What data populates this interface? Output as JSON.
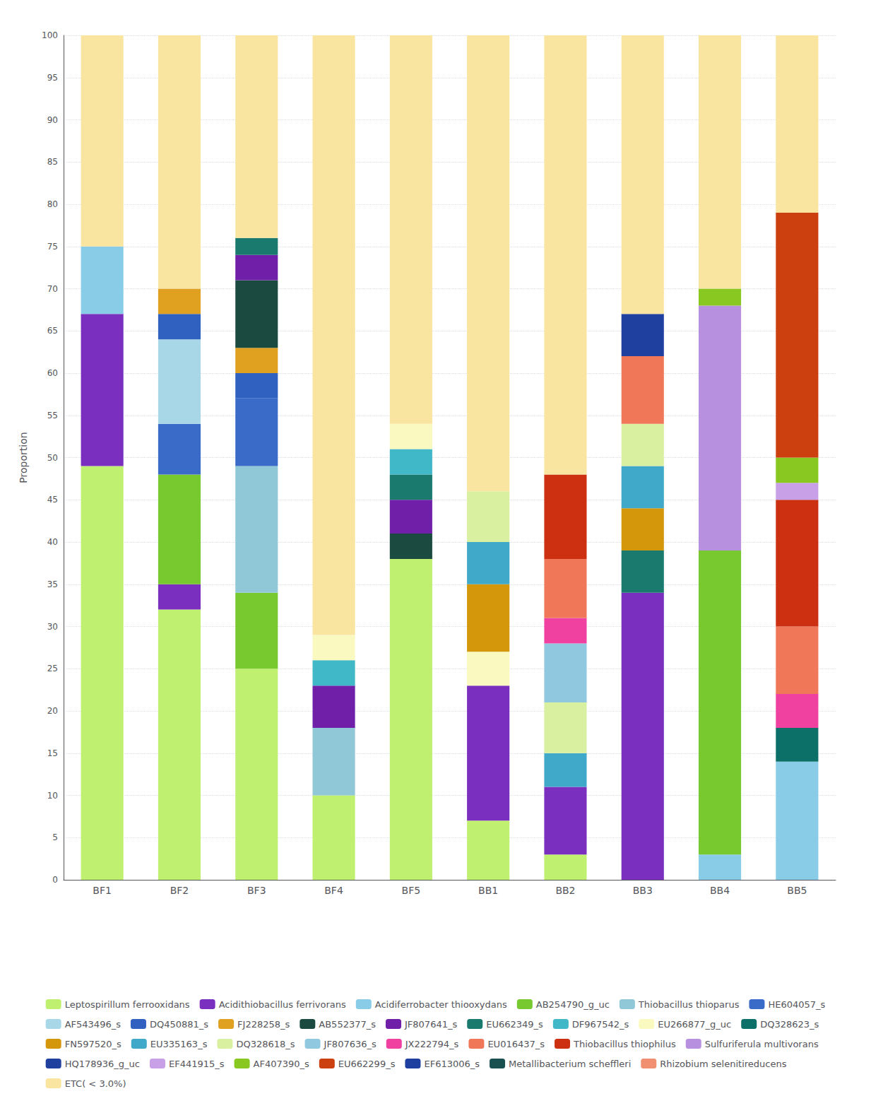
{
  "chart_data": {
    "type": "bar",
    "stacked": true,
    "ylabel": "Proportion",
    "categories": [
      "BF1",
      "BF2",
      "BF3",
      "BF4",
      "BF5",
      "BB1",
      "BB2",
      "BB3",
      "BB4",
      "BB5"
    ],
    "ylim": [
      0,
      100
    ],
    "yticks": [
      0,
      5,
      10,
      15,
      20,
      25,
      30,
      35,
      40,
      45,
      50,
      55,
      60,
      65,
      70,
      75,
      80,
      85,
      90,
      95,
      100
    ],
    "grid": true,
    "legend": "bottom",
    "series": [
      {
        "name": "Leptospirillum ferrooxidans",
        "color": "#C0F070",
        "values": [
          49.0,
          32.0,
          25.0,
          10.0,
          38.0,
          7.0,
          3.0,
          0.0,
          0.0,
          0.0
        ]
      },
      {
        "name": "Acidithiobacillus ferrivorans",
        "color": "#7B2FBF",
        "values": [
          18.0,
          3.0,
          0.0,
          0.0,
          0.0,
          16.0,
          8.0,
          34.0,
          0.0,
          0.0
        ]
      },
      {
        "name": "Acidiferrobacter thiooxydans",
        "color": "#88CCE8",
        "values": [
          8.0,
          0.0,
          0.0,
          0.0,
          0.0,
          0.0,
          0.0,
          0.0,
          3.0,
          14.0
        ]
      },
      {
        "name": "AB254790_g_uc",
        "color": "#78C830",
        "values": [
          0.0,
          13.0,
          9.0,
          0.0,
          0.0,
          0.0,
          0.0,
          0.0,
          36.0,
          0.0
        ]
      },
      {
        "name": "Thiobacillus thioparus",
        "color": "#90C8D8",
        "values": [
          0.0,
          0.0,
          15.0,
          8.0,
          0.0,
          0.0,
          0.0,
          0.0,
          0.0,
          0.0
        ]
      },
      {
        "name": "HE604057_s",
        "color": "#3B6BC8",
        "values": [
          0.0,
          6.0,
          8.0,
          0.0,
          0.0,
          0.0,
          0.0,
          0.0,
          0.0,
          0.0
        ]
      },
      {
        "name": "AF543496_s",
        "color": "#A8D8E8",
        "values": [
          0.0,
          10.0,
          0.0,
          0.0,
          0.0,
          0.0,
          0.0,
          0.0,
          0.0,
          0.0
        ]
      },
      {
        "name": "DQ450881_s",
        "color": "#3060C0",
        "values": [
          0.0,
          3.0,
          3.0,
          0.0,
          0.0,
          0.0,
          0.0,
          0.0,
          0.0,
          0.0
        ]
      },
      {
        "name": "FJ228258_s",
        "color": "#E0A020",
        "values": [
          0.0,
          3.0,
          3.0,
          0.0,
          0.0,
          0.0,
          0.0,
          0.0,
          0.0,
          0.0
        ]
      },
      {
        "name": "AB552377_s",
        "color": "#1A4A40",
        "values": [
          0.0,
          0.0,
          8.0,
          0.0,
          3.0,
          0.0,
          0.0,
          0.0,
          0.0,
          0.0
        ]
      },
      {
        "name": "JF807641_s",
        "color": "#7020A8",
        "values": [
          0.0,
          0.0,
          3.0,
          5.0,
          4.0,
          0.0,
          0.0,
          0.0,
          0.0,
          0.0
        ]
      },
      {
        "name": "EU662349_s",
        "color": "#1A7A6E",
        "values": [
          0.0,
          0.0,
          2.0,
          0.0,
          3.0,
          0.0,
          0.0,
          5.0,
          0.0,
          0.0
        ]
      },
      {
        "name": "DF967542_s",
        "color": "#40B8C8",
        "values": [
          0.0,
          0.0,
          0.0,
          3.0,
          3.0,
          0.0,
          0.0,
          0.0,
          0.0,
          0.0
        ]
      },
      {
        "name": "EU266877_g_uc",
        "color": "#FAFAC0",
        "values": [
          0.0,
          0.0,
          0.0,
          3.0,
          3.0,
          4.0,
          0.0,
          0.0,
          0.0,
          0.0
        ]
      },
      {
        "name": "DQ328623_s",
        "color": "#0D7068",
        "values": [
          0.0,
          0.0,
          0.0,
          0.0,
          0.0,
          0.0,
          0.0,
          0.0,
          0.0,
          4.0
        ]
      },
      {
        "name": "FN597520_s",
        "color": "#D4960A",
        "values": [
          0.0,
          0.0,
          0.0,
          0.0,
          0.0,
          8.0,
          0.0,
          5.0,
          0.0,
          0.0
        ]
      },
      {
        "name": "EU335163_s",
        "color": "#40A8C8",
        "values": [
          0.0,
          0.0,
          0.0,
          0.0,
          0.0,
          5.0,
          4.0,
          5.0,
          0.0,
          0.0
        ]
      },
      {
        "name": "DQ328618_s",
        "color": "#D8F0A0",
        "values": [
          0.0,
          0.0,
          0.0,
          0.0,
          0.0,
          6.0,
          6.0,
          5.0,
          0.0,
          0.0
        ]
      },
      {
        "name": "JF807636_s",
        "color": "#90C8E0",
        "values": [
          0.0,
          0.0,
          0.0,
          0.0,
          0.0,
          0.0,
          7.0,
          0.0,
          0.0,
          0.0
        ]
      },
      {
        "name": "JX222794_s",
        "color": "#F040A0",
        "values": [
          0.0,
          0.0,
          0.0,
          0.0,
          0.0,
          0.0,
          3.0,
          0.0,
          0.0,
          4.0
        ]
      },
      {
        "name": "EU016437_s",
        "color": "#F07858",
        "values": [
          0.0,
          0.0,
          0.0,
          0.0,
          0.0,
          0.0,
          7.0,
          8.0,
          0.0,
          8.0
        ]
      },
      {
        "name": "Thiobacillus thiophilus",
        "color": "#CC3010",
        "values": [
          0.0,
          0.0,
          0.0,
          0.0,
          0.0,
          0.0,
          10.0,
          0.0,
          0.0,
          15.0
        ]
      },
      {
        "name": "Sulfuriferula multivorans",
        "color": "#B890E0",
        "values": [
          0.0,
          0.0,
          0.0,
          0.0,
          0.0,
          0.0,
          0.0,
          0.0,
          29.0,
          0.0
        ]
      },
      {
        "name": "HQ178936_g_uc",
        "color": "#2040A0",
        "values": [
          0.0,
          0.0,
          0.0,
          0.0,
          0.0,
          0.0,
          0.0,
          5.0,
          0.0,
          0.0
        ]
      },
      {
        "name": "EF441915_s",
        "color": "#C8A0E8",
        "values": [
          0.0,
          0.0,
          0.0,
          0.0,
          0.0,
          0.0,
          0.0,
          0.0,
          0.0,
          2.0
        ]
      },
      {
        "name": "AF407390_s",
        "color": "#88C820",
        "values": [
          0.0,
          0.0,
          0.0,
          0.0,
          0.0,
          0.0,
          0.0,
          0.0,
          2.0,
          3.0
        ]
      },
      {
        "name": "EU662299_s",
        "color": "#CC4010",
        "values": [
          0.0,
          0.0,
          0.0,
          0.0,
          0.0,
          0.0,
          0.0,
          0.0,
          0.0,
          29.0
        ]
      },
      {
        "name": "EF613006_s",
        "color": "#1E3EA0",
        "values": [
          0.0,
          0.0,
          0.0,
          0.0,
          0.0,
          0.0,
          0.0,
          0.0,
          0.0,
          0.0
        ]
      },
      {
        "name": "Metallibacterium scheffleri",
        "color": "#1A5050",
        "values": [
          0.0,
          0.0,
          0.0,
          0.0,
          0.0,
          0.0,
          0.0,
          0.0,
          0.0,
          0.0
        ]
      },
      {
        "name": "Rhizobium selenitireducens",
        "color": "#F09070",
        "values": [
          0.0,
          0.0,
          0.0,
          0.0,
          0.0,
          0.0,
          0.0,
          0.0,
          0.0,
          0.0
        ]
      },
      {
        "name": "ETC( < 3.0%)",
        "color": "#FAE5A0",
        "values": [
          25.0,
          30.0,
          24.0,
          71.0,
          46.0,
          54.0,
          52.0,
          33.0,
          30.0,
          21.0
        ]
      }
    ]
  }
}
